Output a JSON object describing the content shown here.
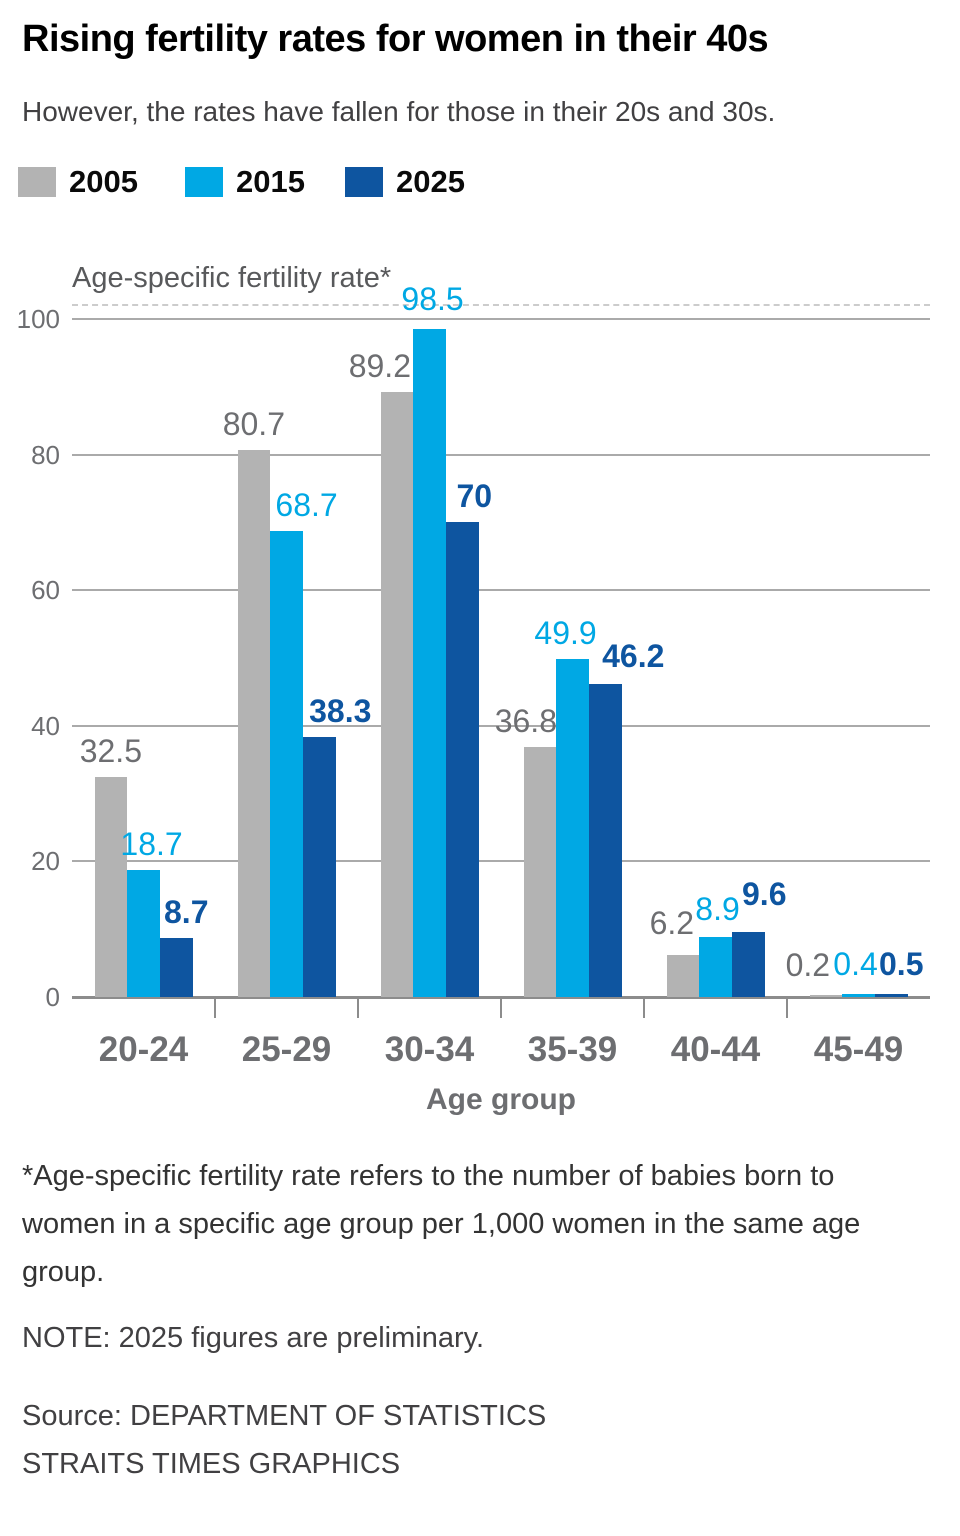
{
  "title": "Rising fertility rates for women in their 40s",
  "subtitle": "However, the rates have fallen for those in their 20s and 30s.",
  "legend": [
    {
      "label": "2005",
      "color": "#b3b3b3"
    },
    {
      "label": "2015",
      "color": "#00a8e4"
    },
    {
      "label": "2025",
      "color": "#0e55a0"
    }
  ],
  "chart_data": {
    "type": "bar",
    "title": "Age-specific fertility rate*",
    "categories": [
      "20-24",
      "25-29",
      "30-34",
      "35-39",
      "40-44",
      "45-49"
    ],
    "series": [
      {
        "name": "2005",
        "color": "#b3b3b3",
        "label_color": "#6d6e71",
        "values": [
          32.5,
          80.7,
          89.2,
          36.8,
          6.2,
          0.2
        ]
      },
      {
        "name": "2015",
        "color": "#00a8e4",
        "label_color": "#00a8e4",
        "values": [
          18.7,
          68.7,
          98.5,
          49.9,
          8.9,
          0.4
        ]
      },
      {
        "name": "2025",
        "color": "#0e55a0",
        "label_color": "#0e55a0",
        "values": [
          8.7,
          38.3,
          70,
          46.2,
          9.6,
          0.5
        ]
      }
    ],
    "xlabel": "Age group",
    "ylabel": "Age-specific fertility rate*",
    "ylim": [
      0,
      100
    ],
    "yticks": [
      0,
      20,
      40,
      60,
      80,
      100
    ],
    "grid": true,
    "legend_position": "top"
  },
  "footnote": "*Age-specific fertility rate refers to the number of babies born to women in a specific age group per 1,000 women in the same age group.",
  "note": "NOTE: 2025 figures are preliminary.",
  "source_line1": "Source: DEPARTMENT OF STATISTICS",
  "source_line2": "STRAITS TIMES GRAPHICS"
}
